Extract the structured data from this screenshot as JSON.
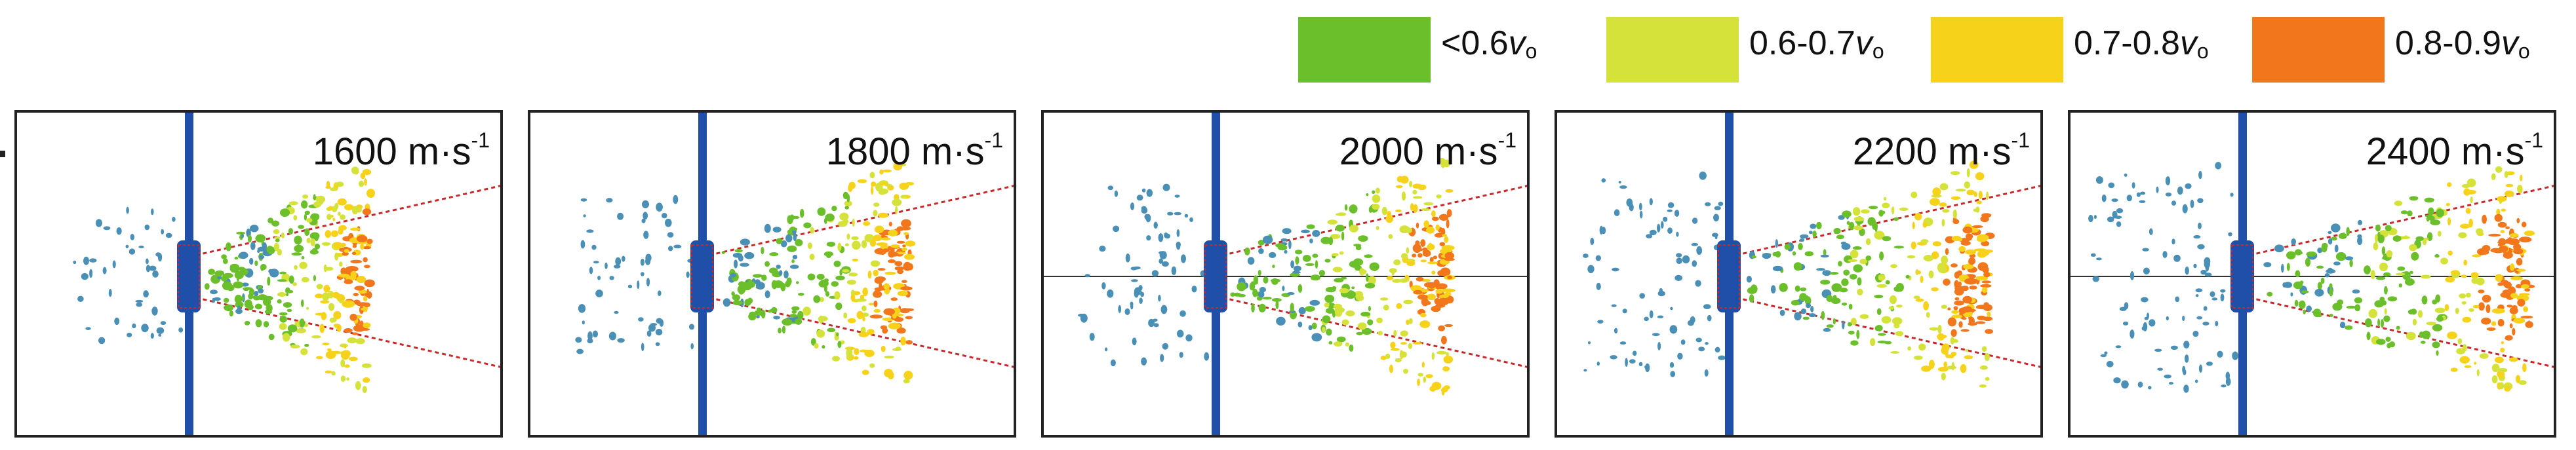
{
  "legend": {
    "items": [
      {
        "name": "legend-lt06",
        "color": "#6bbf2a",
        "prefix": "<0.6",
        "symbol": "v",
        "sub": "o"
      },
      {
        "name": "legend-06-07",
        "color": "#d5e23a",
        "prefix": "0.6-0.7",
        "symbol": "v",
        "sub": "o"
      },
      {
        "name": "legend-07-08",
        "color": "#f6d21a",
        "prefix": "0.7-0.8",
        "symbol": "v",
        "sub": "o"
      },
      {
        "name": "legend-08-09",
        "color": "#f2771c",
        "prefix": "0.8-0.9",
        "symbol": "v",
        "sub": "o"
      }
    ]
  },
  "panels": [
    {
      "velocity": "1600 m·s",
      "exp": "-1",
      "level": 1,
      "axis": false
    },
    {
      "velocity": "1800 m·s",
      "exp": "-1",
      "level": 2,
      "axis": false
    },
    {
      "velocity": "2000 m·s",
      "exp": "-1",
      "level": 3,
      "axis": true
    },
    {
      "velocity": "2200 m·s",
      "exp": "-1",
      "level": 4,
      "axis": false
    },
    {
      "velocity": "2400 m·s",
      "exp": "-1",
      "level": 5,
      "axis": true
    }
  ],
  "colors": {
    "plate": "#1f4fa8",
    "cone_line": "#c8282a",
    "debris_blue": "#4a8fb5",
    "green": "#6bbf2a",
    "yellow_green": "#d5e23a",
    "yellow": "#f6d21a",
    "orange": "#f2771c"
  }
}
